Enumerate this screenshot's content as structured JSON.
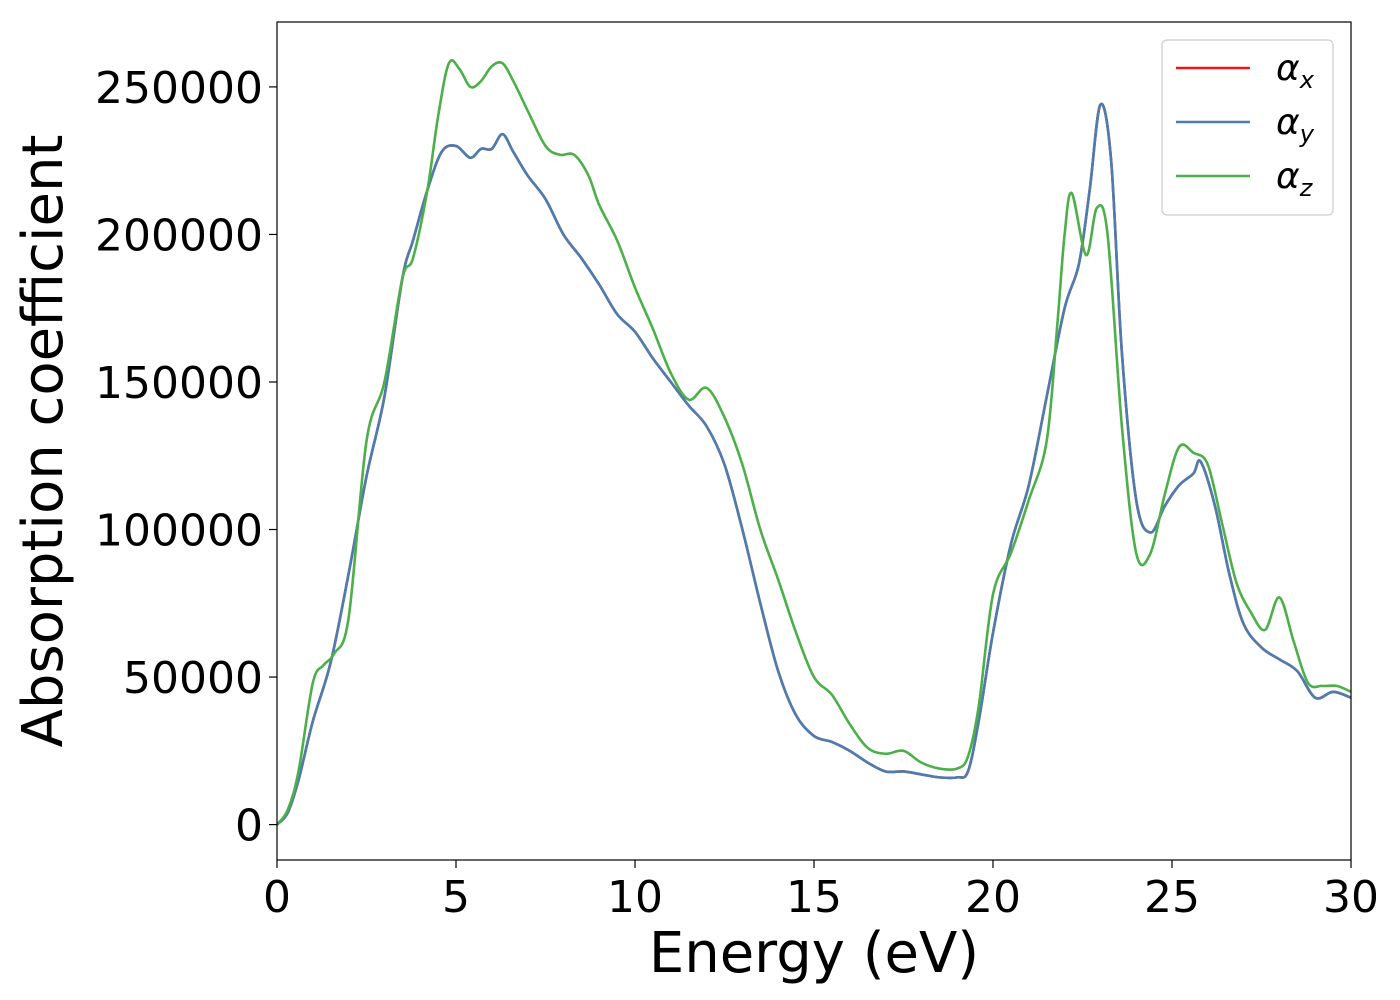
{
  "chart_data": {
    "type": "line",
    "xlabel": "Energy (eV)",
    "ylabel": "Absorption coefficient",
    "xlim": [
      0,
      30
    ],
    "ylim": [
      -12000,
      272000
    ],
    "xticks": [
      0,
      5,
      10,
      15,
      20,
      25,
      30
    ],
    "yticks": [
      0,
      50000,
      100000,
      150000,
      200000,
      250000
    ],
    "grid": false,
    "legend_position": "top-right",
    "series": [
      {
        "name": "α_x",
        "symbol": "α",
        "subscript": "x",
        "color": "#e41a1c",
        "x": [
          0,
          0.3,
          0.6,
          1.0,
          1.5,
          2.0,
          2.5,
          3.0,
          3.5,
          3.8,
          4.2,
          4.6,
          5.0,
          5.4,
          5.7,
          6.0,
          6.3,
          6.6,
          7.0,
          7.5,
          8.0,
          8.5,
          9.0,
          9.5,
          10.0,
          10.5,
          11.0,
          11.5,
          12.0,
          12.5,
          13.0,
          13.5,
          14.0,
          14.5,
          15.0,
          15.5,
          16.0,
          16.5,
          17.0,
          17.5,
          18.0,
          18.5,
          19.0,
          19.3,
          19.6,
          20.0,
          20.5,
          21.0,
          21.5,
          22.0,
          22.4,
          22.7,
          23.0,
          23.3,
          23.6,
          24.0,
          24.4,
          24.8,
          25.2,
          25.6,
          25.8,
          26.2,
          26.6,
          27.0,
          27.5,
          28.0,
          28.5,
          29.0,
          29.5,
          30.0
        ],
        "y": [
          0,
          4000,
          15000,
          35000,
          55000,
          85000,
          118000,
          145000,
          185000,
          198000,
          215000,
          228000,
          230000,
          226000,
          229000,
          229000,
          234000,
          228000,
          220000,
          212000,
          200000,
          192000,
          183000,
          173000,
          167000,
          158000,
          150000,
          142000,
          135000,
          122000,
          100000,
          75000,
          52000,
          37000,
          30000,
          28000,
          25000,
          21000,
          18000,
          18000,
          17000,
          16000,
          16000,
          18000,
          35000,
          65000,
          95000,
          115000,
          145000,
          175000,
          190000,
          215000,
          244000,
          225000,
          160000,
          110000,
          99000,
          108000,
          115000,
          119000,
          123000,
          108000,
          85000,
          68000,
          60000,
          56000,
          52000,
          43000,
          45000,
          43000
        ]
      },
      {
        "name": "α_y",
        "symbol": "α",
        "subscript": "y",
        "color": "#4a7eb1",
        "x": [
          0,
          0.3,
          0.6,
          1.0,
          1.5,
          2.0,
          2.5,
          3.0,
          3.5,
          3.8,
          4.2,
          4.6,
          5.0,
          5.4,
          5.7,
          6.0,
          6.3,
          6.6,
          7.0,
          7.5,
          8.0,
          8.5,
          9.0,
          9.5,
          10.0,
          10.5,
          11.0,
          11.5,
          12.0,
          12.5,
          13.0,
          13.5,
          14.0,
          14.5,
          15.0,
          15.5,
          16.0,
          16.5,
          17.0,
          17.5,
          18.0,
          18.5,
          19.0,
          19.3,
          19.6,
          20.0,
          20.5,
          21.0,
          21.5,
          22.0,
          22.4,
          22.7,
          23.0,
          23.3,
          23.6,
          24.0,
          24.4,
          24.8,
          25.2,
          25.6,
          25.8,
          26.2,
          26.6,
          27.0,
          27.5,
          28.0,
          28.5,
          29.0,
          29.5,
          30.0
        ],
        "y": [
          0,
          4000,
          15000,
          35000,
          55000,
          85000,
          118000,
          145000,
          185000,
          198000,
          215000,
          228000,
          230000,
          226000,
          229000,
          229000,
          234000,
          228000,
          220000,
          212000,
          200000,
          192000,
          183000,
          173000,
          167000,
          158000,
          150000,
          142000,
          135000,
          122000,
          100000,
          75000,
          52000,
          37000,
          30000,
          28000,
          25000,
          21000,
          18000,
          18000,
          17000,
          16000,
          16000,
          18000,
          35000,
          65000,
          95000,
          115000,
          145000,
          175000,
          190000,
          215000,
          244000,
          225000,
          160000,
          110000,
          99000,
          108000,
          115000,
          119000,
          123000,
          108000,
          85000,
          68000,
          60000,
          56000,
          52000,
          43000,
          45000,
          43000
        ]
      },
      {
        "name": "α_z",
        "symbol": "α",
        "subscript": "z",
        "color": "#4daf4a",
        "x": [
          0,
          0.3,
          0.6,
          1.0,
          1.3,
          1.6,
          2.0,
          2.5,
          3.0,
          3.5,
          3.8,
          4.2,
          4.5,
          4.8,
          5.1,
          5.4,
          5.7,
          6.0,
          6.3,
          6.6,
          7.0,
          7.5,
          7.9,
          8.3,
          8.7,
          9.0,
          9.5,
          10.0,
          10.5,
          11.0,
          11.5,
          12.0,
          12.5,
          13.0,
          13.5,
          14.0,
          14.5,
          15.0,
          15.5,
          16.0,
          16.5,
          17.0,
          17.5,
          18.0,
          18.5,
          19.0,
          19.3,
          19.6,
          20.0,
          20.5,
          21.0,
          21.5,
          21.8,
          22.0,
          22.2,
          22.6,
          22.9,
          23.2,
          23.6,
          24.0,
          24.4,
          24.8,
          25.2,
          25.6,
          26.0,
          26.4,
          26.8,
          27.2,
          27.6,
          28.0,
          28.4,
          28.8,
          29.2,
          29.6,
          30.0
        ],
        "y": [
          0,
          5000,
          18000,
          48000,
          54000,
          58000,
          70000,
          130000,
          150000,
          185000,
          192000,
          215000,
          240000,
          258000,
          256000,
          250000,
          252000,
          257000,
          258000,
          252000,
          242000,
          230000,
          227000,
          227000,
          220000,
          210000,
          198000,
          182000,
          168000,
          153000,
          144000,
          148000,
          138000,
          122000,
          100000,
          83000,
          65000,
          50000,
          44000,
          34000,
          26000,
          24000,
          25000,
          21000,
          19000,
          19000,
          23000,
          40000,
          78000,
          92000,
          110000,
          130000,
          170000,
          200000,
          214000,
          193000,
          209000,
          200000,
          135000,
          92000,
          92000,
          112000,
          128000,
          126000,
          122000,
          102000,
          82000,
          72000,
          66000,
          77000,
          62000,
          48000,
          47000,
          47000,
          45000
        ]
      }
    ]
  }
}
